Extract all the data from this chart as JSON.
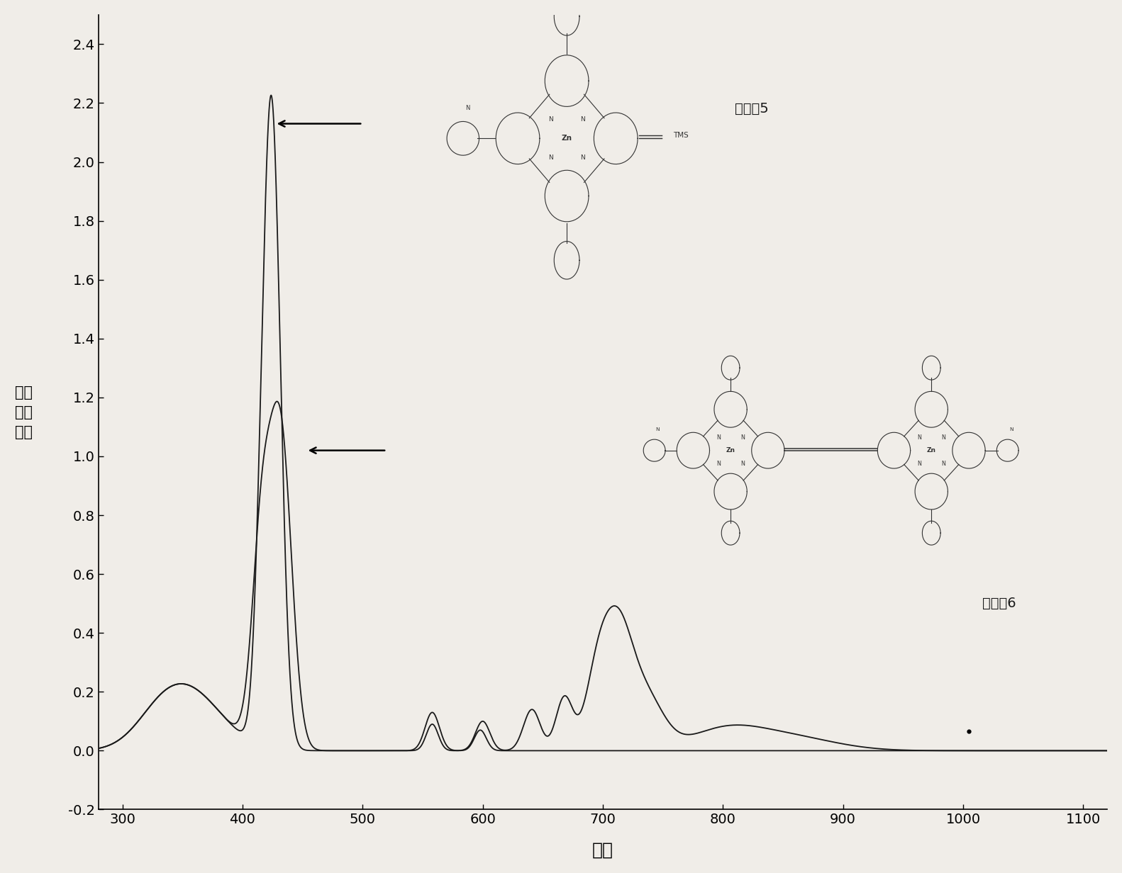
{
  "title": "",
  "xlabel": "波长",
  "ylabel": "紫外\n吸收\n强度",
  "xlim": [
    280,
    1120
  ],
  "ylim": [
    -0.2,
    2.5
  ],
  "xticks": [
    300,
    400,
    500,
    600,
    700,
    800,
    900,
    1000,
    1100
  ],
  "yticks": [
    -0.2,
    0.0,
    0.2,
    0.4,
    0.6,
    0.8,
    1.0,
    1.2,
    1.4,
    1.6,
    1.8,
    2.0,
    2.2,
    2.4
  ],
  "background_color": "#f0ede8",
  "line_color": "#1a1a1a",
  "xlabel_fontsize": 18,
  "ylabel_fontsize": 15,
  "tick_fontsize": 14,
  "label5_text": "化合物5",
  "label6_text": "化合物6"
}
